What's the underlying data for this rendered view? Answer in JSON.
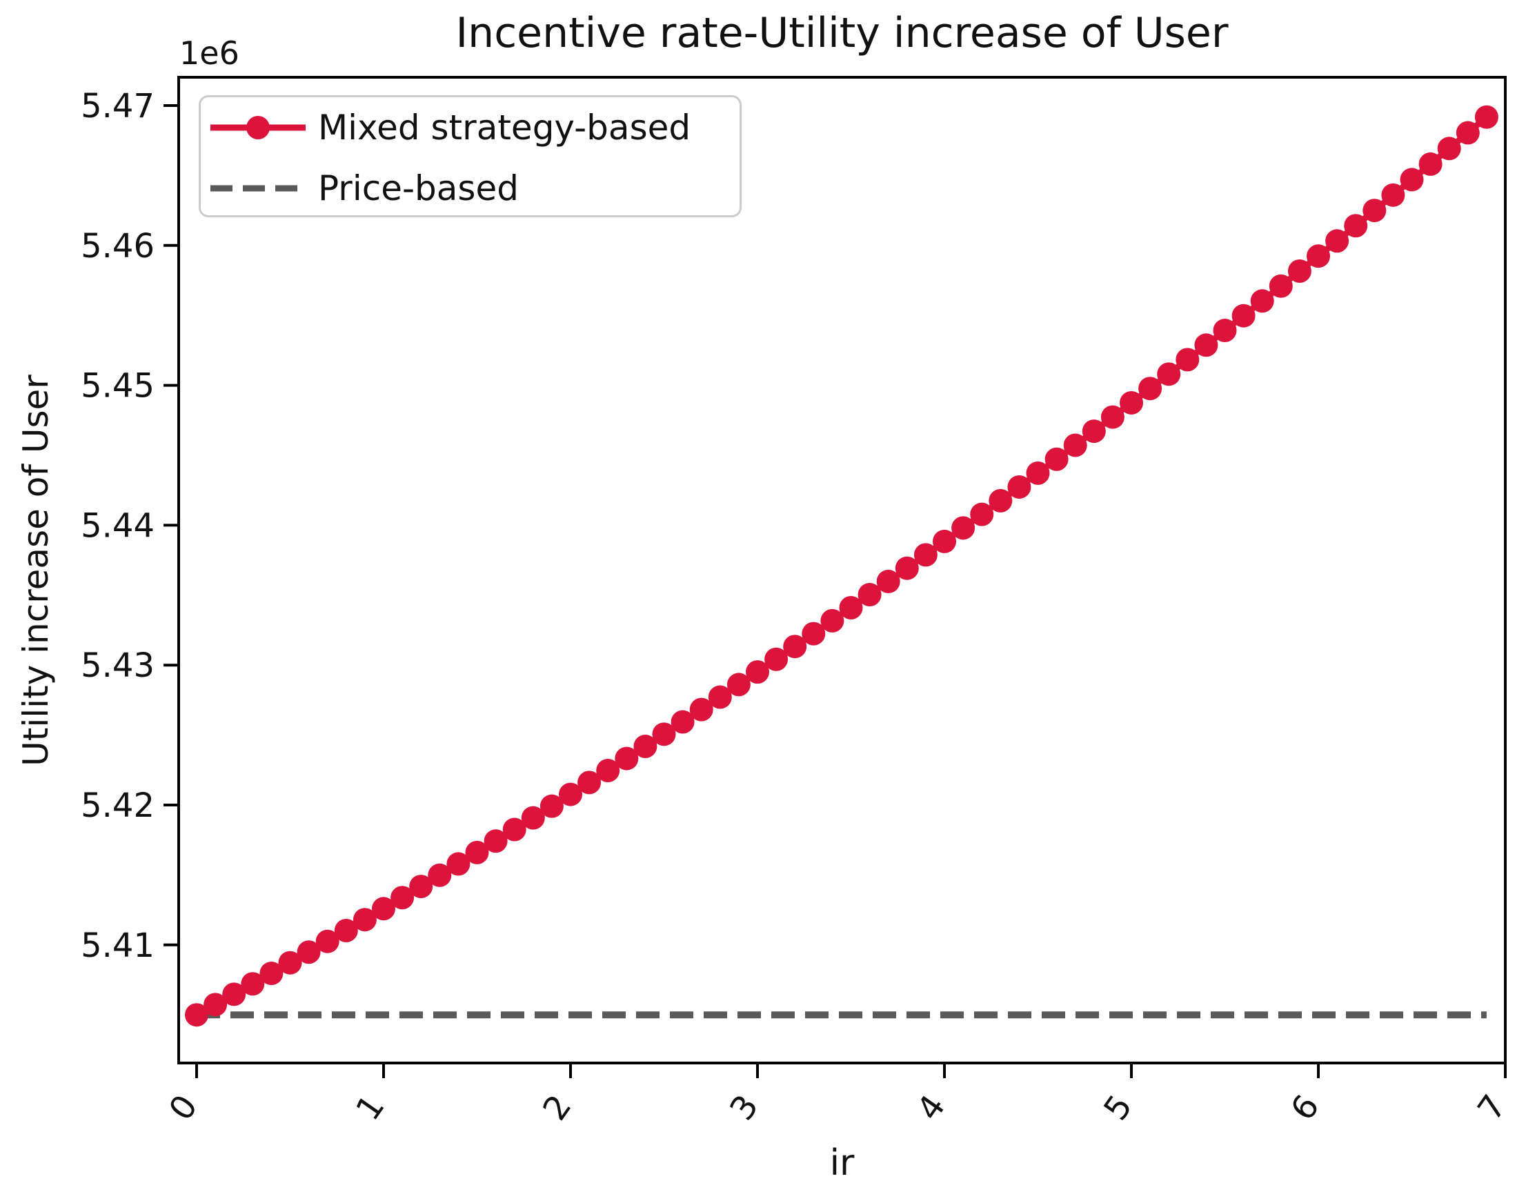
{
  "figure": {
    "title": "Incentive rate-Utility increase of User",
    "xlabel": "ir",
    "ylabel": "Utility increase of User",
    "y_offset_label": "1e6"
  },
  "colors": {
    "mixed_strategy": "#DC143C",
    "price_based": "#5A5A5A",
    "axis": "#000000",
    "tick_text": "#111111",
    "legend_border": "#CCCCCC",
    "background": "#FFFFFF"
  },
  "legend": {
    "position": "upper left",
    "items": [
      {
        "label": "Mixed strategy-based",
        "marker": "solid-line-with-dot",
        "color_key": "mixed_strategy"
      },
      {
        "label": "Price-based",
        "marker": "dashed-line",
        "color_key": "price_based"
      }
    ]
  },
  "chart_data": {
    "type": "line",
    "title": "Incentive rate-Utility increase of User",
    "xlabel": "ir",
    "ylabel": "Utility increase of User",
    "y_offset_factor": "1e6",
    "grid": false,
    "legend_position": "upper left",
    "xticks": [
      0,
      1,
      2,
      3,
      4,
      5,
      6,
      7
    ],
    "yticks_1e6": [
      5.47,
      5.46,
      5.45,
      5.44,
      5.43,
      5.42,
      5.41
    ],
    "xlim": [
      -0.1,
      7.0
    ],
    "ylim": [
      5401600,
      5472100
    ],
    "series": [
      {
        "name": "Mixed strategy-based",
        "style": "solid-with-circle-markers",
        "color": "#DC143C",
        "x": [
          0.0,
          0.1,
          0.2,
          0.3,
          0.4,
          0.5,
          0.6,
          0.7,
          0.8,
          0.9,
          1.0,
          1.1,
          1.2,
          1.3,
          1.4,
          1.5,
          1.6,
          1.7,
          1.8,
          1.9,
          2.0,
          2.1,
          2.2,
          2.3,
          2.4,
          2.5,
          2.6,
          2.7,
          2.8,
          2.9,
          3.0,
          3.1,
          3.2,
          3.3,
          3.4,
          3.5,
          3.6,
          3.7,
          3.8,
          3.9,
          4.0,
          4.1,
          4.2,
          4.3,
          4.4,
          4.5,
          4.6,
          4.7,
          4.8,
          4.9,
          5.0,
          5.1,
          5.2,
          5.3,
          5.4,
          5.5,
          5.6,
          5.7,
          5.8,
          5.9,
          6.0,
          6.1,
          6.2,
          6.3,
          6.4,
          6.5,
          6.6,
          6.7,
          6.8,
          6.9
        ],
        "y": [
          5405000,
          5405733,
          5406472,
          5407216,
          5407966,
          5408723,
          5409484,
          5410252,
          5411026,
          5411805,
          5412590,
          5413381,
          5414178,
          5414980,
          5415788,
          5416603,
          5417422,
          5418248,
          5419080,
          5419917,
          5420760,
          5421609,
          5422464,
          5423324,
          5424190,
          5425063,
          5425940,
          5426824,
          5427714,
          5428609,
          5429510,
          5430417,
          5431330,
          5432248,
          5433172,
          5434103,
          5435038,
          5435980,
          5436928,
          5437881,
          5438840,
          5439805,
          5440776,
          5441752,
          5442734,
          5443723,
          5444716,
          5445716,
          5446722,
          5447733,
          5448750,
          5449773,
          5450802,
          5451836,
          5452876,
          5453923,
          5454974,
          5456032,
          5457096,
          5458165,
          5459240,
          5460321,
          5461408,
          5462500,
          5463598,
          5464703,
          5465812,
          5466928,
          5468050,
          5469177
        ]
      },
      {
        "name": "Price-based",
        "style": "dashed",
        "color": "#5A5A5A",
        "x": [
          0.0,
          6.9
        ],
        "y": [
          5405000,
          5405000
        ]
      }
    ]
  }
}
